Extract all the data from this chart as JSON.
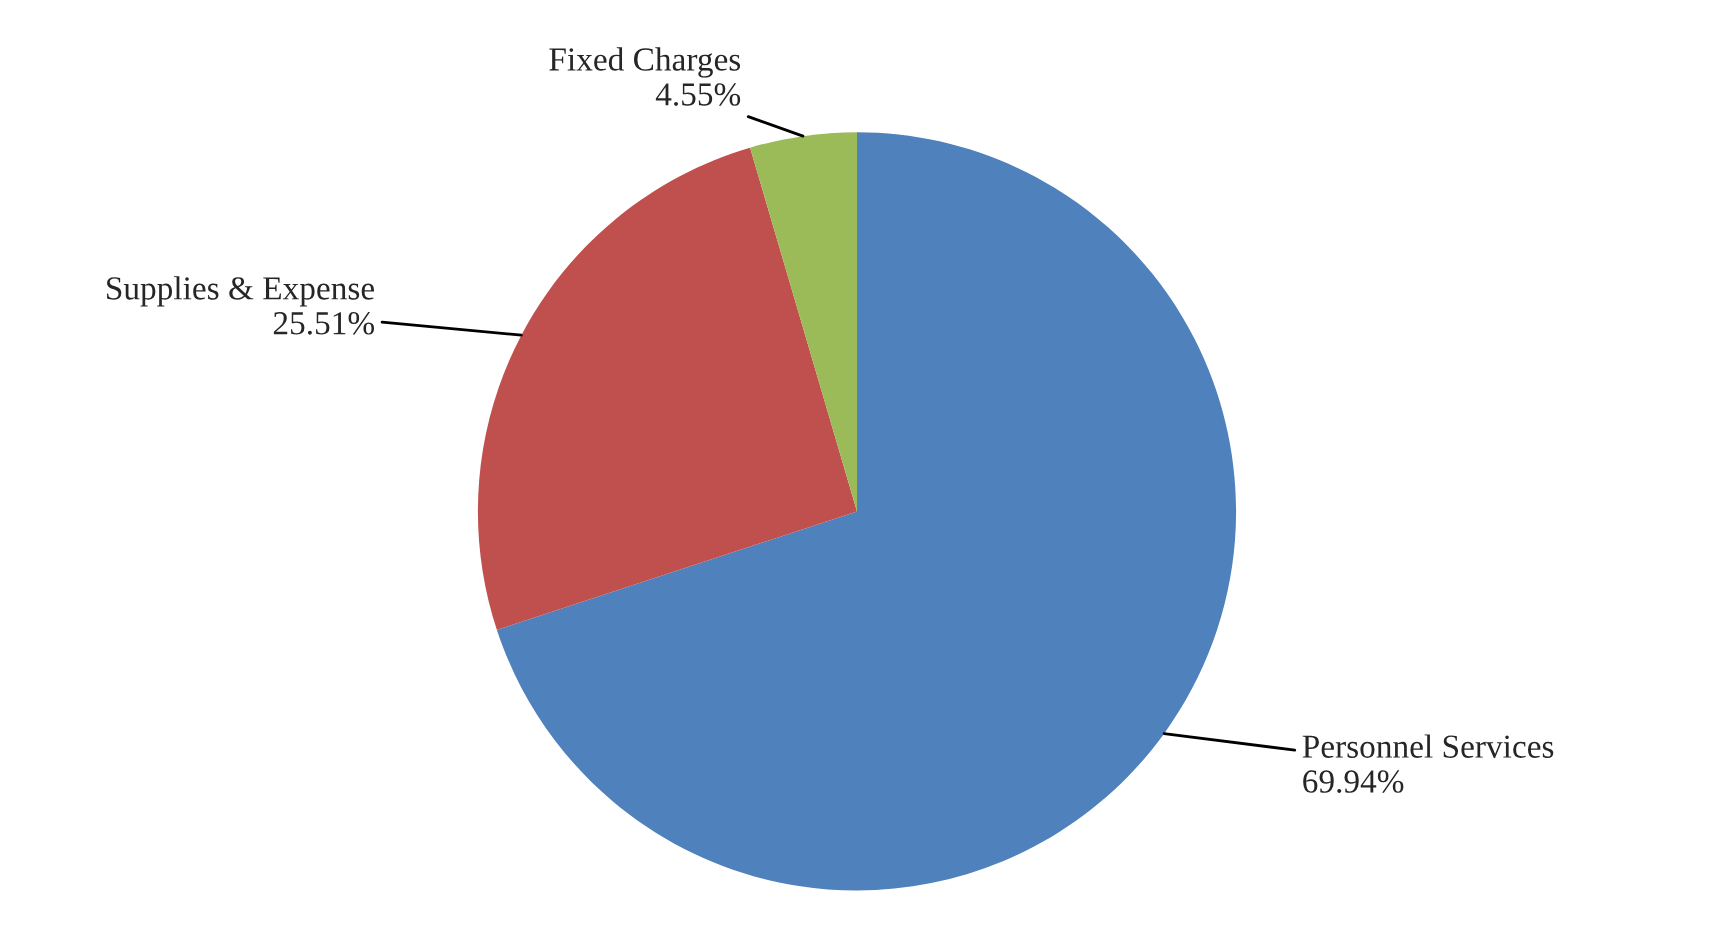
{
  "chart_data": {
    "type": "pie",
    "categories": [
      "Personnel Services",
      "Supplies & Expense",
      "Fixed Charges"
    ],
    "values": [
      69.94,
      25.51,
      4.55
    ],
    "value_labels": [
      "69.94%",
      "25.51%",
      "4.55%"
    ],
    "colors": [
      "#4f81bd",
      "#c0504d",
      "#9bbb59"
    ],
    "legend": false
  }
}
